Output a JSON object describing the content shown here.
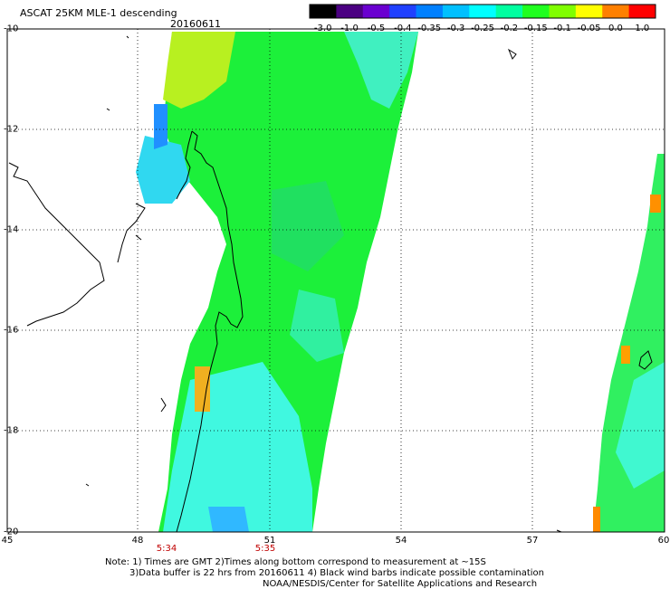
{
  "header": {
    "title": "ASCAT 25KM MLE-1 descending",
    "date": "20160611"
  },
  "colorbar": {
    "ticks": [
      "-3.0",
      "-1.0",
      "-0.5",
      "-0.4",
      "-0.35",
      "-0.3",
      "-0.25",
      "-0.2",
      "-0.15",
      "-0.1",
      "-0.05",
      "0.0",
      "1.0"
    ],
    "colors": [
      "#000000",
      "#4b0082",
      "#6a00d0",
      "#2040ff",
      "#0080ff",
      "#00c0ff",
      "#00ffff",
      "#00ffa0",
      "#20ff20",
      "#80ff00",
      "#ffff00",
      "#ff8000",
      "#ff0000"
    ]
  },
  "axes": {
    "lat_labels": [
      "-10",
      "-12",
      "-14",
      "-16",
      "-18",
      "-20"
    ],
    "lon_labels": [
      "45",
      "48",
      "51",
      "54",
      "57",
      "60"
    ],
    "time_labels": [
      "5:34",
      "5:35"
    ]
  },
  "notes": [
    "Note: 1) Times are GMT 2)Times along bottom correspond to measurement at ~15S",
    "3)Data buffer is 22 hrs from 20160611 4) Black wind barbs indicate possible contamination",
    "NOAA/NESDIS/Center for Satellite Applications and Research"
  ],
  "swaths": {
    "main_color": "#20f030",
    "right_color": "#30f060",
    "cyan": "#40ffe0",
    "blue": "#20a0ff",
    "yellow": "#e0f020",
    "orange": "#ff9000"
  }
}
